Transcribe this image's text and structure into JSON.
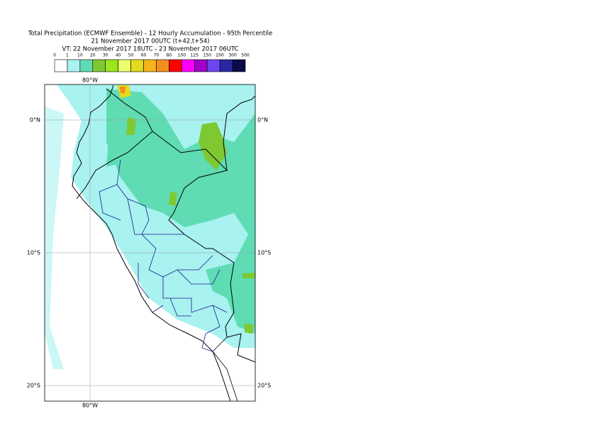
{
  "header": {
    "lines": [
      "Total Precipitation (ECMWF Ensemble) - 12 Hourly Accumulation - 95th Percentile",
      "21 November 2017 00UTC (t+42,t+54)",
      "VT: 22 November 2017 18UTC - 23 November 2017 06UTC"
    ]
  },
  "legend": {
    "labels": [
      "0",
      "1",
      "10",
      "20",
      "30",
      "40",
      "50",
      "60",
      "70",
      "80",
      "100",
      "125",
      "150",
      "200",
      "300",
      "500"
    ],
    "colors": [
      "#ffffff",
      "#a8f2f0",
      "#5fdcb4",
      "#7ec832",
      "#9ce61e",
      "#ebff6e",
      "#e1dc1e",
      "#f5b41e",
      "#f58c1e",
      "#ff0000",
      "#ff00ff",
      "#a000c8",
      "#6e46f0",
      "#2828a0",
      "#0a0a46"
    ]
  },
  "map": {
    "lon_labels": [
      "80°W",
      "80°W"
    ],
    "lat_labels": [
      "0°N",
      "0°N",
      "10°S",
      "10°S",
      "20°S",
      "20°S"
    ]
  }
}
